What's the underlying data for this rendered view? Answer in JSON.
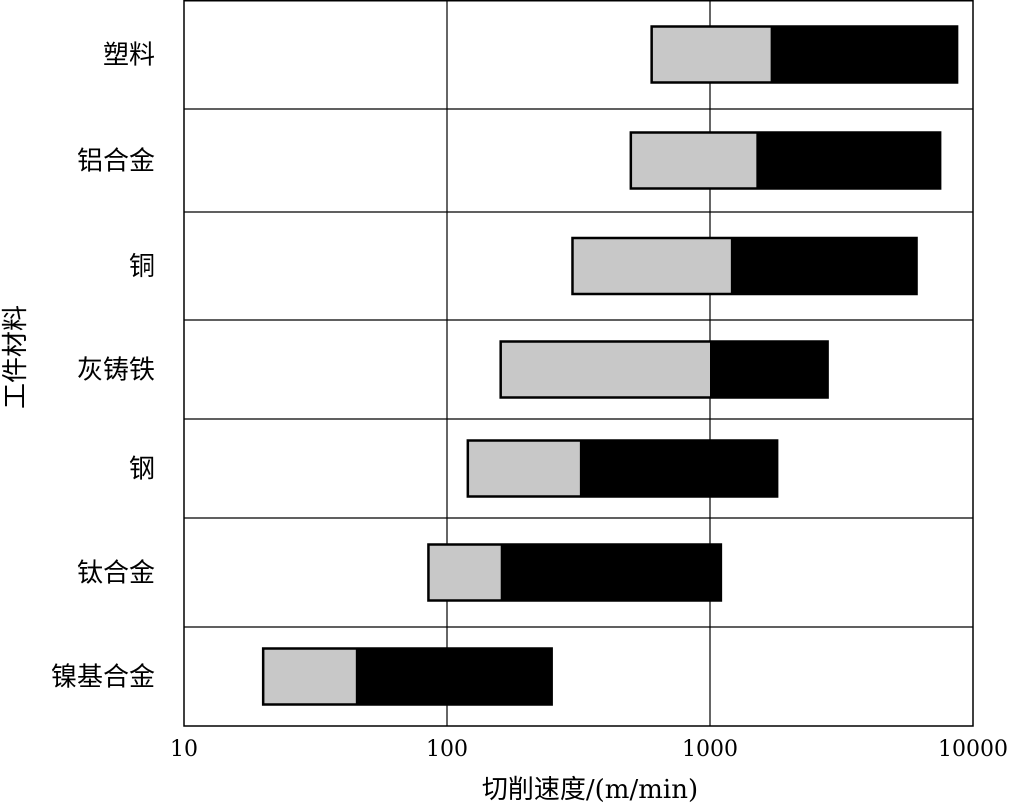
{
  "chart_data": {
    "type": "bar",
    "orientation": "horizontal",
    "xscale": "log",
    "xlim": [
      10,
      10000
    ],
    "xticks": [
      "10",
      "100",
      "1000",
      "10000"
    ],
    "xtick_values": [
      10,
      100,
      1000,
      10000
    ],
    "xlabel": "切削速度/(m/min)",
    "ylabel": "工件材料",
    "grid": true,
    "categories": [
      "塑料",
      "铝合金",
      "铜",
      "灰铸铁",
      "钢",
      "钛合金",
      "镍基合金"
    ],
    "series": [
      {
        "values": [
          [
            600,
            1700
          ],
          [
            500,
            1500
          ],
          [
            300,
            1200
          ],
          [
            160,
            1000
          ],
          [
            120,
            320
          ],
          [
            85,
            160
          ],
          [
            20,
            45
          ]
        ]
      },
      {
        "values": [
          [
            1700,
            8700
          ],
          [
            1500,
            7500
          ],
          [
            1200,
            6100
          ],
          [
            1000,
            2800
          ],
          [
            320,
            1800
          ],
          [
            160,
            1100
          ],
          [
            45,
            250
          ]
        ]
      }
    ],
    "colors": [
      "#c8c8c8",
      "#000000"
    ]
  }
}
